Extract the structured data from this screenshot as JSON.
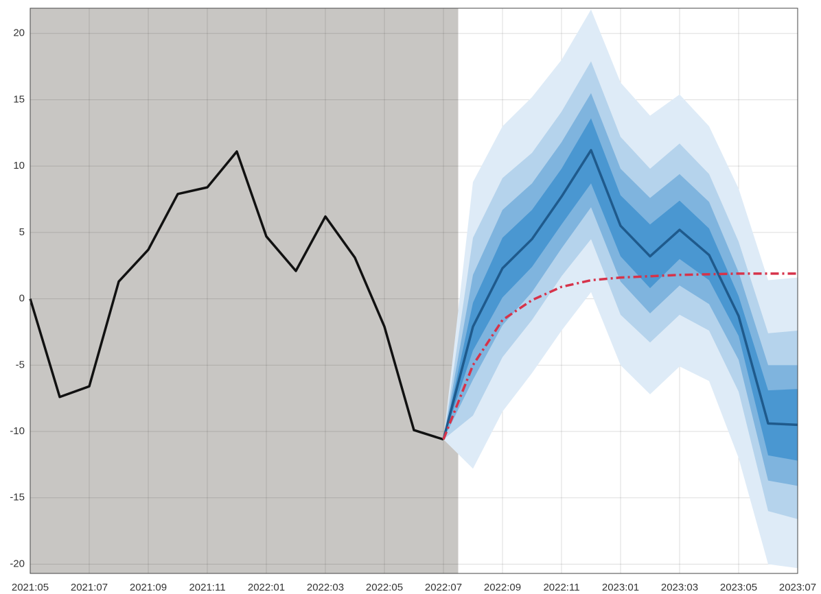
{
  "chart_data": {
    "type": "fan",
    "categories": [
      "2021:05",
      null,
      "2021:07",
      null,
      "2021:09",
      null,
      "2021:11",
      null,
      "2022:01",
      null,
      "2022:03",
      null,
      "2022:05",
      null,
      "2022:07",
      null,
      "2022:09",
      null,
      "2022:11",
      null,
      "2023:01",
      null,
      "2023:03",
      null,
      "2023:05",
      null,
      "2023:07"
    ],
    "ylim": [
      -20.7,
      21.9
    ],
    "yticks": [
      -20,
      -15,
      -10,
      -5,
      0,
      5,
      10,
      15,
      20
    ],
    "grid": true,
    "shade": {
      "color": "#c8c6c3",
      "until": 14.5
    },
    "bands": [
      {
        "color": "#deebf7",
        "upper": [
          null,
          null,
          null,
          null,
          null,
          null,
          null,
          null,
          null,
          null,
          null,
          null,
          null,
          null,
          -10.6,
          8.8,
          13.0,
          15.2,
          18.0,
          21.8,
          16.3,
          13.8,
          15.4,
          13.0,
          8.3,
          1.4,
          1.6
        ],
        "lower": [
          null,
          null,
          null,
          null,
          null,
          null,
          null,
          null,
          null,
          null,
          null,
          null,
          null,
          null,
          -10.6,
          -12.8,
          -8.5,
          -5.6,
          -2.4,
          0.5,
          -5.0,
          -7.2,
          -5.1,
          -6.2,
          -12.0,
          -20.0,
          -20.3
        ]
      },
      {
        "color": "#b5d3ec",
        "upper": [
          null,
          null,
          null,
          null,
          null,
          null,
          null,
          null,
          null,
          null,
          null,
          null,
          null,
          null,
          -10.6,
          4.6,
          9.1,
          11.0,
          14.1,
          17.9,
          12.2,
          9.8,
          11.7,
          9.4,
          4.3,
          -2.6,
          -2.4
        ],
        "lower": [
          null,
          null,
          null,
          null,
          null,
          null,
          null,
          null,
          null,
          null,
          null,
          null,
          null,
          null,
          -10.6,
          -8.8,
          -4.4,
          -1.6,
          1.7,
          4.5,
          -1.2,
          -3.3,
          -1.2,
          -2.4,
          -7.0,
          -16.0,
          -16.6
        ]
      },
      {
        "color": "#7fb4de",
        "upper": [
          null,
          null,
          null,
          null,
          null,
          null,
          null,
          null,
          null,
          null,
          null,
          null,
          null,
          null,
          -10.6,
          1.8,
          6.7,
          8.7,
          11.8,
          15.5,
          9.8,
          7.6,
          9.4,
          7.3,
          2.0,
          -5.0,
          -5.0
        ],
        "lower": [
          null,
          null,
          null,
          null,
          null,
          null,
          null,
          null,
          null,
          null,
          null,
          null,
          null,
          null,
          -10.6,
          -6.1,
          -2.0,
          0.5,
          3.8,
          6.9,
          1.3,
          -1.1,
          1.0,
          -0.4,
          -4.6,
          -13.7,
          -14.1
        ]
      },
      {
        "color": "#4a97d1",
        "upper": [
          null,
          null,
          null,
          null,
          null,
          null,
          null,
          null,
          null,
          null,
          null,
          null,
          null,
          null,
          -10.6,
          -0.3,
          4.6,
          6.7,
          9.8,
          13.6,
          7.8,
          5.6,
          7.4,
          5.3,
          0.2,
          -6.9,
          -6.8
        ],
        "lower": [
          null,
          null,
          null,
          null,
          null,
          null,
          null,
          null,
          null,
          null,
          null,
          null,
          null,
          null,
          -10.6,
          -3.9,
          0.1,
          2.4,
          5.6,
          8.7,
          3.2,
          0.8,
          3.0,
          1.4,
          -2.8,
          -11.8,
          -12.2
        ]
      }
    ],
    "series": [
      {
        "color": "#111111",
        "style": "solid",
        "values": [
          0,
          -7.4,
          -6.6,
          1.3,
          3.7,
          7.9,
          8.4,
          11.1,
          4.7,
          2.1,
          6.2,
          3.1,
          -2.1,
          -9.9,
          -10.6,
          null,
          null,
          null,
          null,
          null,
          null,
          null,
          null,
          null,
          null,
          null,
          null
        ]
      },
      {
        "color": "#1f5a8c",
        "style": "solid",
        "values": [
          null,
          null,
          null,
          null,
          null,
          null,
          null,
          null,
          null,
          null,
          null,
          null,
          null,
          null,
          -10.6,
          -2.1,
          2.3,
          4.5,
          7.7,
          11.2,
          5.5,
          3.2,
          5.2,
          3.3,
          -1.3,
          -9.4,
          -9.5
        ]
      },
      {
        "color": "#d6334a",
        "style": "dashdot",
        "values": [
          null,
          null,
          null,
          null,
          null,
          null,
          null,
          null,
          null,
          null,
          null,
          null,
          null,
          null,
          -10.6,
          -5.0,
          -1.6,
          -0.1,
          0.9,
          1.4,
          1.6,
          1.7,
          1.8,
          1.85,
          1.9,
          1.9,
          1.9
        ]
      }
    ]
  }
}
